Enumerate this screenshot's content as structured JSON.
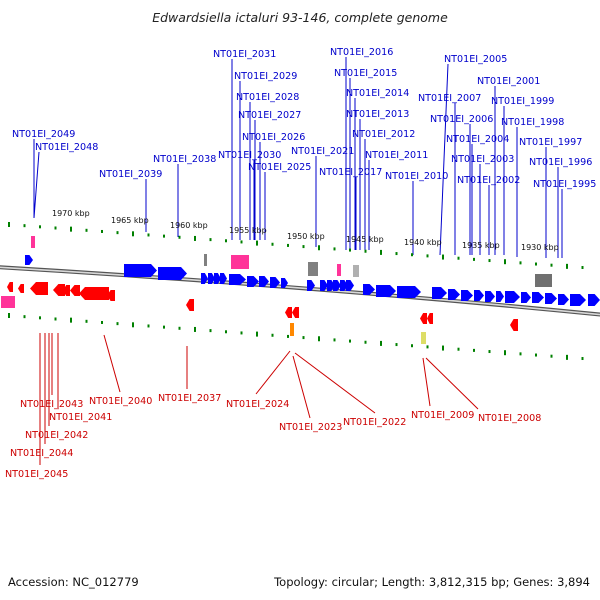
{
  "title": "Edwardsiella ictaluri 93-146, complete genome",
  "footer": {
    "accession": "Accession: NC_012779",
    "summary": "Topology: circular; Length: 3,812,315 bp; Genes: 3,894"
  },
  "colors": {
    "forward_gene": "#0000ff",
    "reverse_gene": "#ff0000",
    "forward_label": "#0000cc",
    "reverse_label": "#cc0000",
    "rna_marker": "#ff3399",
    "pseudo_marker": "#808080",
    "tick": "#008000",
    "backbone": "#808080"
  },
  "scale": {
    "top": [
      "1970 kbp",
      "1965 kbp",
      "1960 kbp",
      "1955 kbp",
      "1950 kbp",
      "1945 kbp",
      "1940 kbp",
      "1935 kbp",
      "1930 kbp"
    ],
    "bottom": []
  },
  "forward_genes": [
    "NT01EI_2049",
    "NT01EI_2048",
    "NT01EI_2039",
    "NT01EI_2038",
    "NT01EI_2031",
    "NT01EI_2029",
    "NT01EI_2028",
    "NT01EI_2027",
    "NT01EI_2026",
    "NT01EI_2030",
    "NT01EI_2025",
    "NT01EI_2021",
    "NT01EI_2016",
    "NT01EI_2015",
    "NT01EI_2014",
    "NT01EI_2013",
    "NT01EI_2012",
    "NT01EI_2017",
    "NT01EI_2011",
    "NT01EI_2010",
    "NT01EI_2005",
    "NT01EI_2007",
    "NT01EI_2001",
    "NT01EI_2006",
    "NT01EI_1999",
    "NT01EI_2004",
    "NT01EI_1998",
    "NT01EI_2003",
    "NT01EI_1997",
    "NT01EI_1996",
    "NT01EI_2002",
    "NT01EI_1995"
  ],
  "reverse_genes": [
    "NT01EI_2043",
    "NT01EI_2041",
    "NT01EI_2042",
    "NT01EI_2044",
    "NT01EI_2045",
    "NT01EI_2040",
    "NT01EI_2037",
    "NT01EI_2024",
    "NT01EI_2023",
    "NT01EI_2022",
    "NT01EI_2009",
    "NT01EI_2008"
  ]
}
